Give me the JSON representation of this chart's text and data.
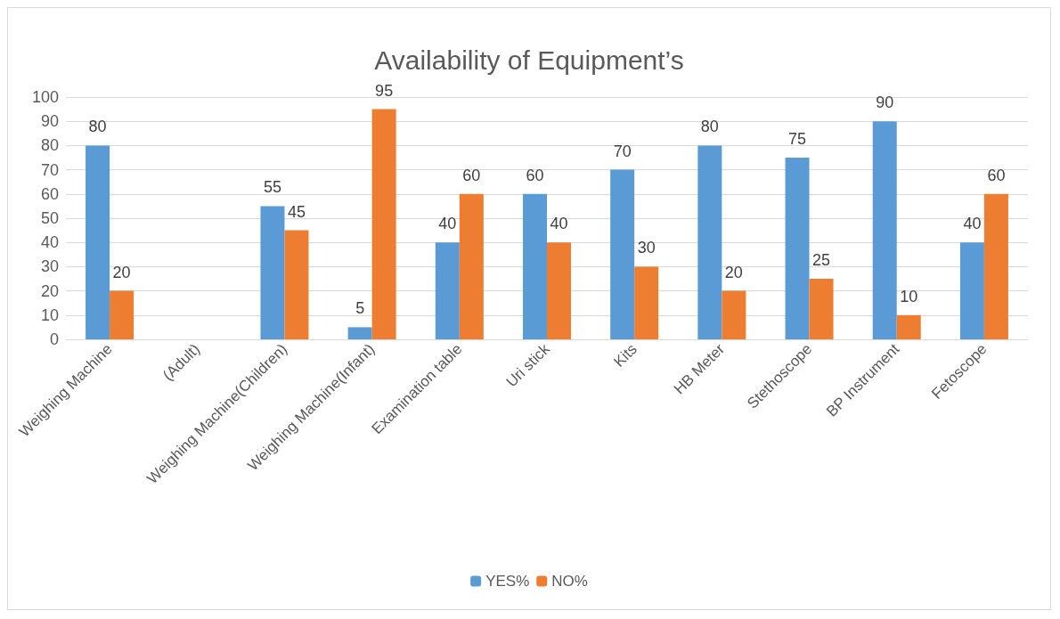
{
  "chart_data": {
    "type": "bar",
    "title": "Availability of Equipment’s",
    "categories": [
      "Weighing Machine",
      "(Adult)",
      "Weighing Machine(Children)",
      "Weighing Machine(Infant)",
      "Examination table",
      "Uri stick",
      "Kits",
      "HB Meter",
      "Stethoscope",
      "BP Instrument",
      "Fetoscope"
    ],
    "series": [
      {
        "name": "YES%",
        "color": "#5b9bd5",
        "values": [
          80,
          null,
          55,
          5,
          40,
          60,
          70,
          80,
          75,
          90,
          40
        ]
      },
      {
        "name": "NO%",
        "color": "#ed7d31",
        "values": [
          20,
          null,
          45,
          95,
          60,
          40,
          30,
          20,
          25,
          10,
          60
        ]
      }
    ],
    "ylim": [
      0,
      100
    ],
    "yticks": [
      0,
      10,
      20,
      30,
      40,
      50,
      60,
      70,
      80,
      90,
      100
    ],
    "grid": "y",
    "legend": "bottom",
    "data_labels": true
  }
}
